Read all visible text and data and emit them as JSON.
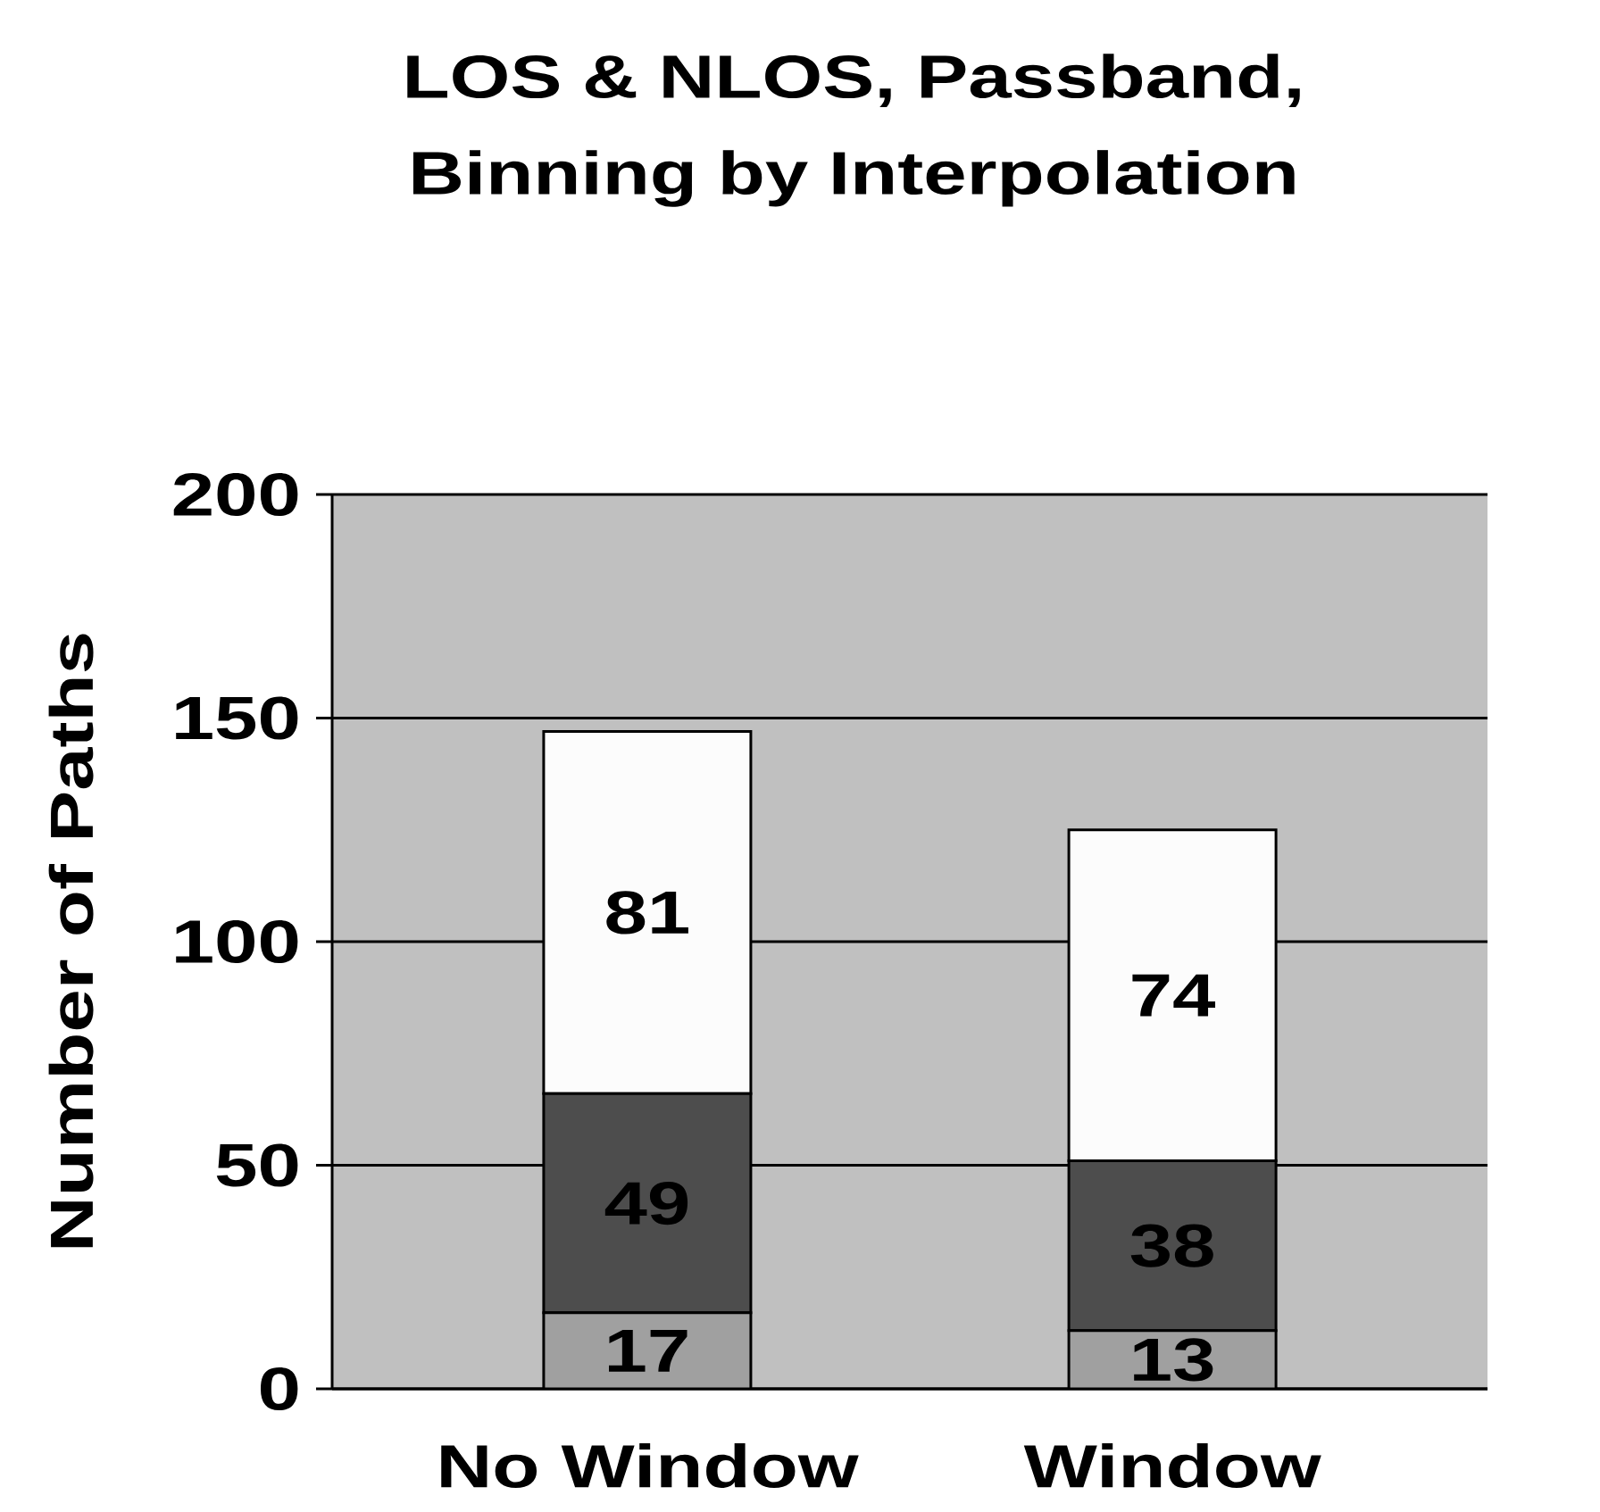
{
  "chart_data": {
    "type": "bar",
    "stacked": true,
    "title": "LOS & NLOS, Passband, Binning by Interpolation",
    "ylabel": "Number of Paths",
    "categories": [
      "No Window",
      "Window"
    ],
    "series": [
      {
        "color": "#a0a0a0",
        "values": [
          17,
          13
        ]
      },
      {
        "color": "#4d4d4d",
        "values": [
          49,
          38
        ]
      },
      {
        "color": "#fcfcfc",
        "values": [
          81,
          74
        ]
      }
    ],
    "ylim": [
      0,
      200
    ],
    "yticks": [
      0,
      50,
      100,
      150,
      200
    ],
    "grid": "y",
    "data_labels": true
  }
}
